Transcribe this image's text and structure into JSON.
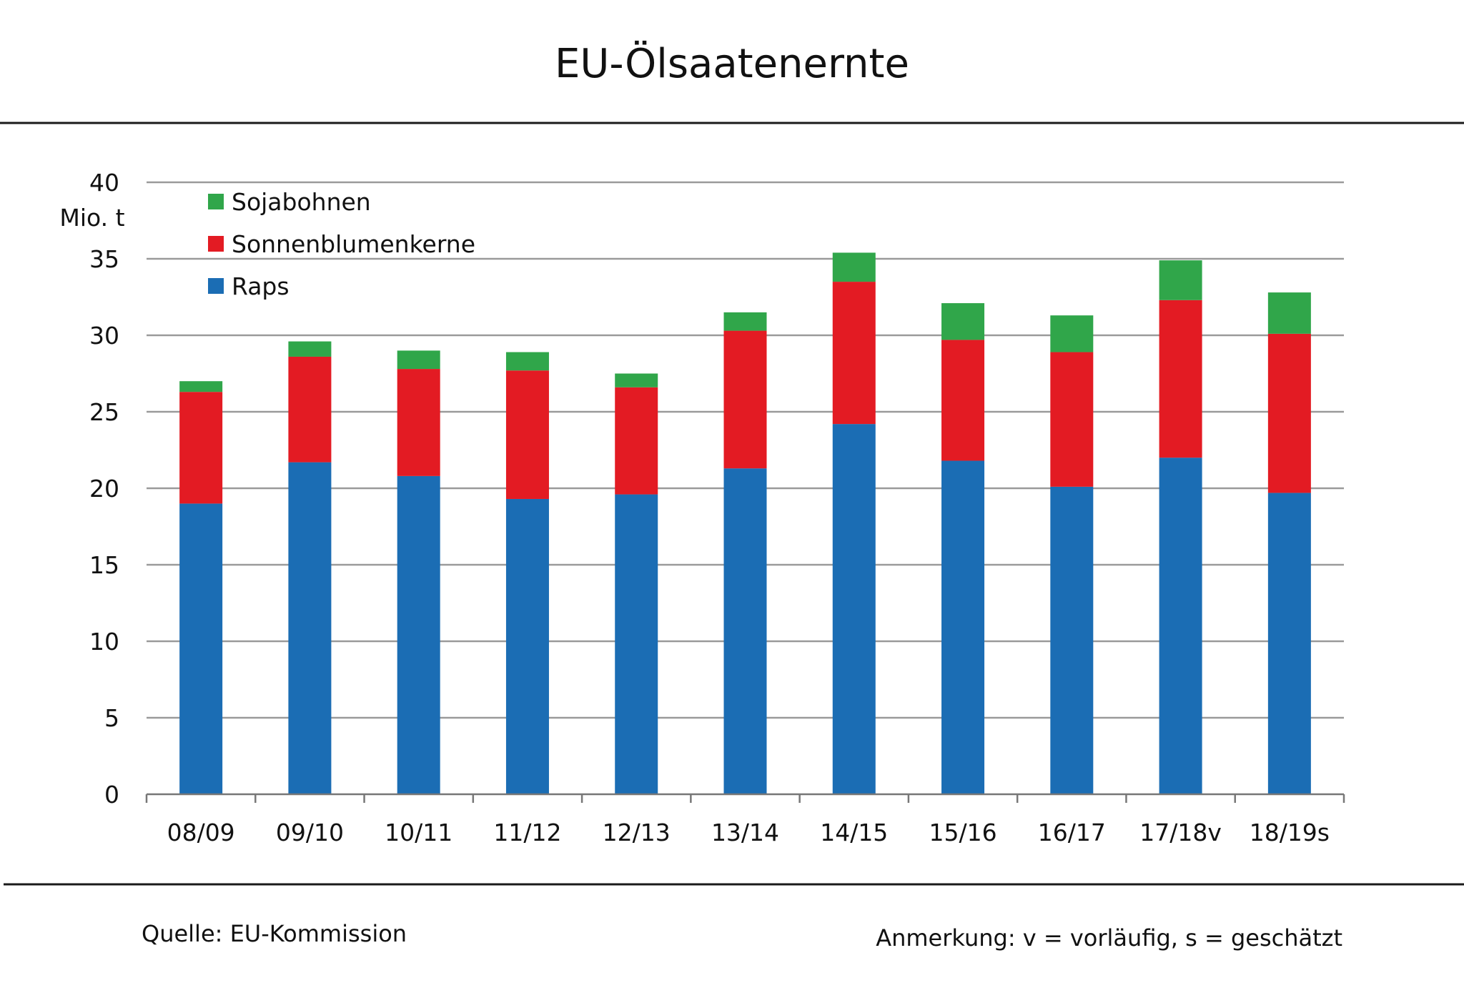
{
  "chart_data": {
    "type": "bar",
    "stacked": true,
    "title": "EU-Ölsaatenernte",
    "ylabel": "Mio. t",
    "xlabel": "",
    "ylim": [
      0,
      40
    ],
    "yticks": [
      0,
      5,
      10,
      15,
      20,
      25,
      30,
      35,
      40
    ],
    "grid": true,
    "legend_position": "top-left",
    "categories": [
      "08/09",
      "09/10",
      "10/11",
      "11/12",
      "12/13",
      "13/14",
      "14/15",
      "15/16",
      "16/17",
      "17/18v",
      "18/19s"
    ],
    "series": [
      {
        "name": "Raps",
        "color": "#1b6db4",
        "values": [
          19.0,
          21.7,
          20.8,
          19.3,
          19.6,
          21.3,
          24.2,
          21.8,
          20.1,
          22.0,
          19.7
        ]
      },
      {
        "name": "Sonnenblumenkerne",
        "color": "#e31b23",
        "values": [
          7.3,
          6.9,
          7.0,
          8.4,
          7.0,
          9.0,
          9.3,
          7.9,
          8.8,
          10.3,
          10.4
        ]
      },
      {
        "name": "Sojabohnen",
        "color": "#30a64a",
        "values": [
          0.7,
          1.0,
          1.2,
          1.2,
          0.9,
          1.2,
          1.9,
          2.4,
          2.4,
          2.6,
          2.7
        ]
      }
    ],
    "legend_order": [
      "Sojabohnen",
      "Sonnenblumenkerne",
      "Raps"
    ],
    "source_text": "Quelle:  EU-Kommission",
    "note_text": "Anmerkung: v = vorläufig, s = geschätzt"
  },
  "colors": {
    "grid": "#9a9a9a",
    "rule": "#1a1a1a",
    "axis": "#777777"
  }
}
